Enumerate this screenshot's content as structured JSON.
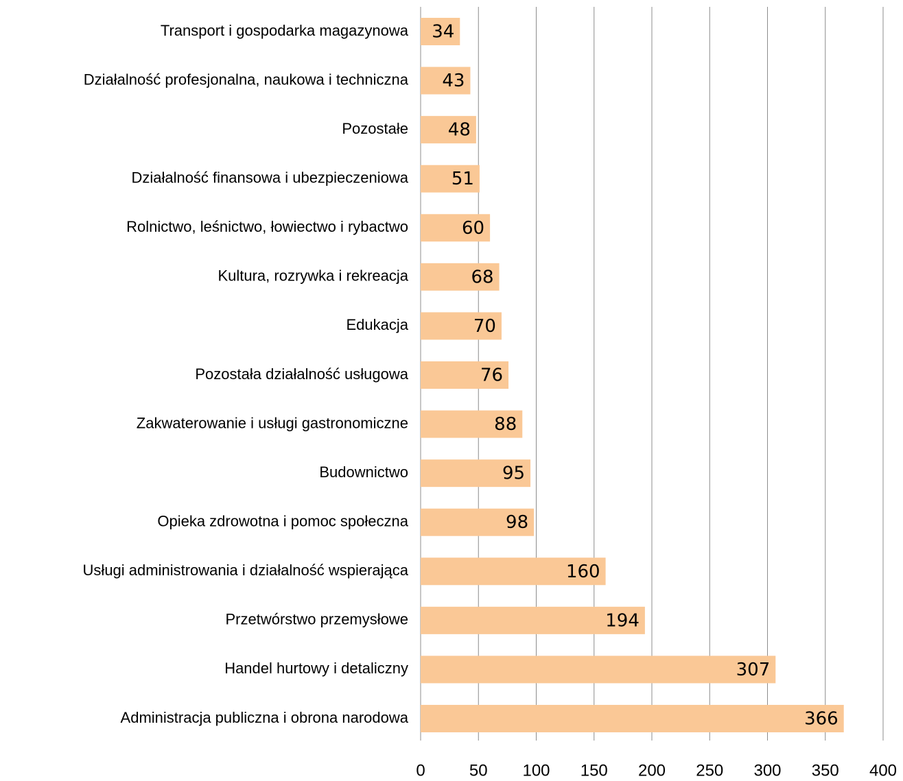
{
  "chart_data": {
    "type": "bar",
    "orientation": "horizontal",
    "categories": [
      "Transport i gospodarka magazynowa",
      "Działalność profesjonalna, naukowa i techniczna",
      "Pozostałe",
      "Działalność finansowa i ubezpieczeniowa",
      "Rolnictwo, leśnictwo, łowiectwo i rybactwo",
      "Kultura, rozrywka i rekreacja",
      "Edukacja",
      "Pozostała działalność usługowa",
      "Zakwaterowanie i usługi gastronomiczne",
      "Budownictwo",
      "Opieka zdrowotna i pomoc społeczna",
      "Usługi administrowania i działalność wspierająca",
      "Przetwórstwo przemysłowe",
      "Handel hurtowy i detaliczny",
      "Administracja publiczna i obrona narodowa"
    ],
    "values": [
      34,
      43,
      48,
      51,
      60,
      68,
      70,
      76,
      88,
      95,
      98,
      160,
      194,
      307,
      366
    ],
    "color": "#fac896",
    "xlim": [
      0,
      400
    ],
    "xticks": [
      0,
      50,
      100,
      150,
      200,
      250,
      300,
      350,
      400
    ],
    "grid": true
  }
}
